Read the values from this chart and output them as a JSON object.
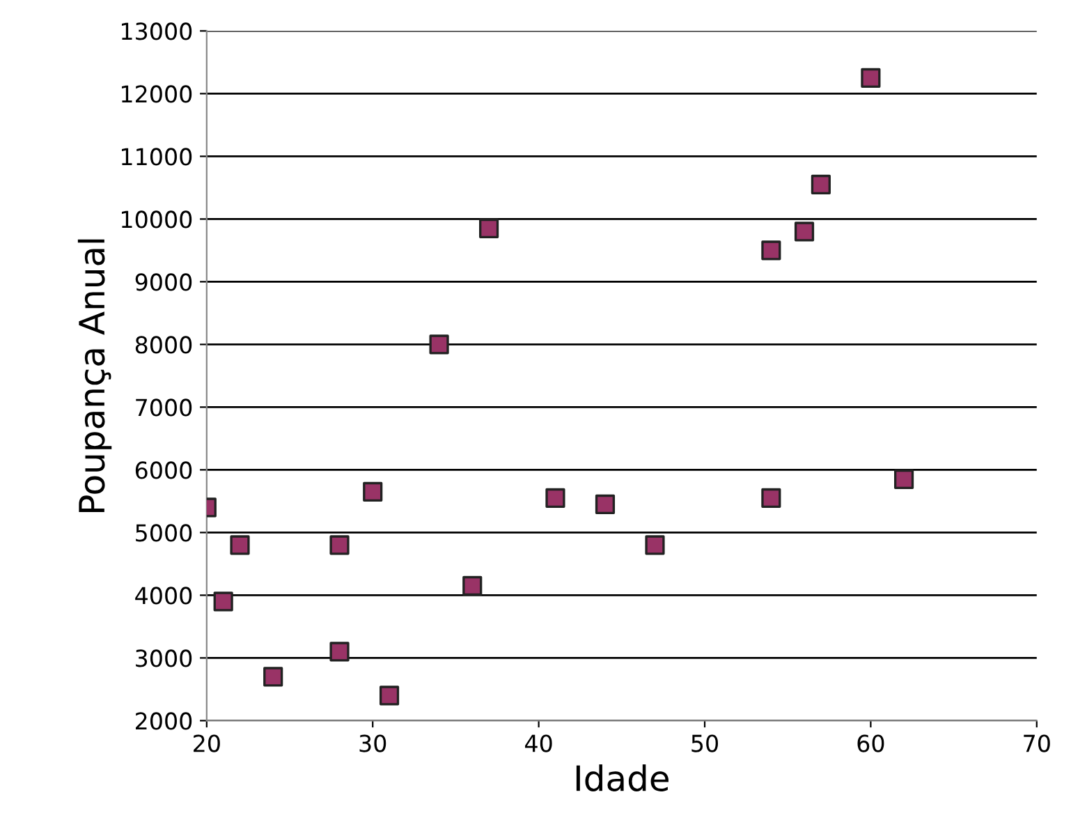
{
  "chart_data": {
    "type": "scatter",
    "xlabel": "Idade",
    "ylabel": "Poupança Anual",
    "x": [
      20,
      21,
      22,
      24,
      28,
      28,
      30,
      31,
      34,
      36,
      37,
      41,
      44,
      47,
      54,
      54,
      56,
      57,
      60,
      62
    ],
    "series": [
      {
        "color": "#993366",
        "values": [
          5400,
          3900,
          4800,
          2700,
          3100,
          4800,
          5650,
          2400,
          8000,
          4150,
          9850,
          5550,
          5450,
          4800,
          9500,
          5550,
          9800,
          10550,
          12250,
          5850
        ]
      }
    ],
    "xlim": [
      20,
      70
    ],
    "xticks": [
      20,
      30,
      40,
      50,
      60,
      70
    ],
    "ylim": [
      2000,
      13000
    ],
    "yticks": [
      2000,
      3000,
      4000,
      5000,
      6000,
      7000,
      8000,
      9000,
      10000,
      11000,
      12000,
      13000
    ],
    "grid": "y",
    "marker": "square"
  }
}
